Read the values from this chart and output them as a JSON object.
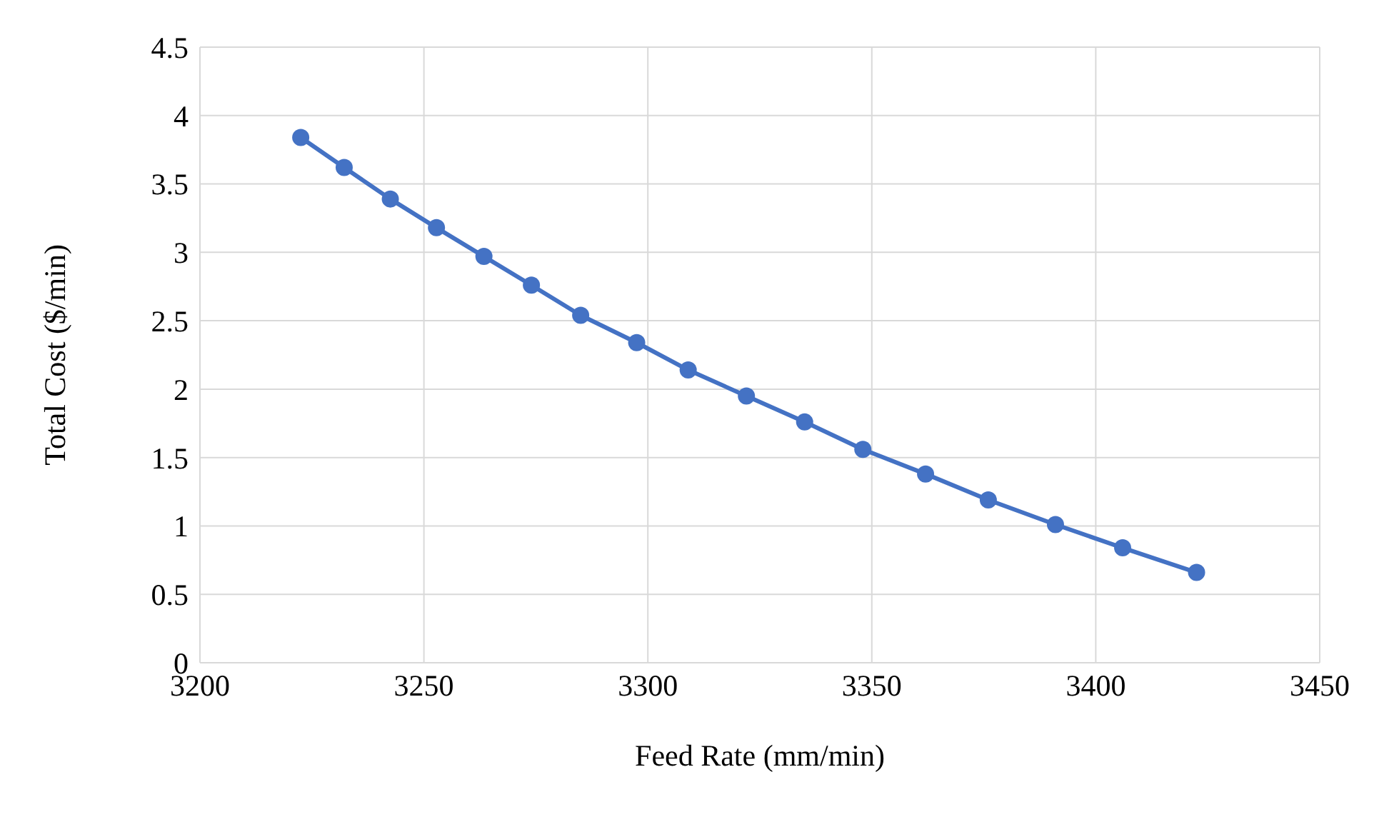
{
  "chart_data": {
    "type": "line",
    "xlabel": "Feed Rate (mm/min)",
    "ylabel": "Total Cost ($/min)",
    "x": [
      3222.5,
      3232.2,
      3242.5,
      3252.8,
      3263.4,
      3274,
      3285,
      3297.5,
      3309,
      3322,
      3335,
      3348,
      3362,
      3376,
      3391,
      3406,
      3422.5
    ],
    "series": [
      {
        "color": "#4472c4",
        "values": [
          3.84,
          3.62,
          3.39,
          3.18,
          2.97,
          2.76,
          2.54,
          2.34,
          2.14,
          1.95,
          1.76,
          1.56,
          1.38,
          1.19,
          1.01,
          0.84,
          0.66
        ]
      }
    ],
    "xlim": [
      3200,
      3450
    ],
    "xticks": [
      3200,
      3250,
      3300,
      3350,
      3400,
      3450
    ],
    "ylim": [
      0,
      4.5
    ],
    "yticks": [
      0,
      0.5,
      1,
      1.5,
      2,
      2.5,
      3,
      3.5,
      4,
      4.5
    ],
    "grid": true,
    "marker": "circle",
    "line_style": "solid"
  }
}
